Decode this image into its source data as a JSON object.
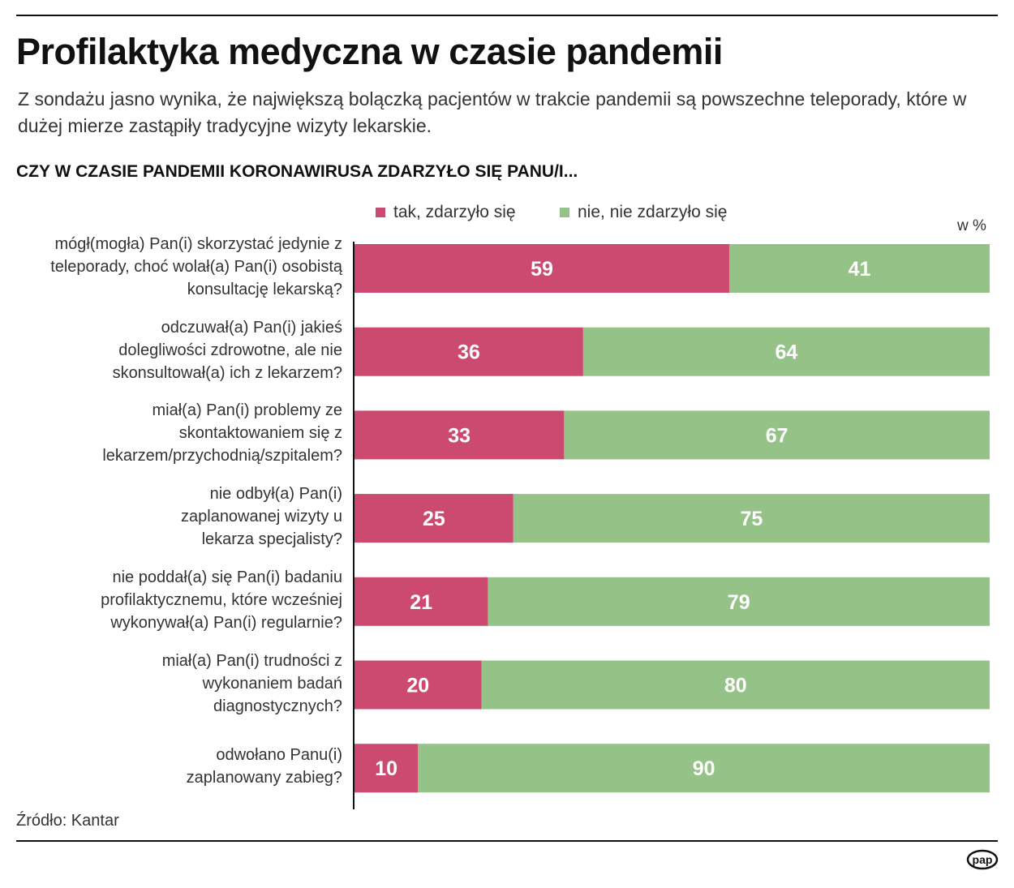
{
  "title": "Profilaktyka medyczna w czasie pandemii",
  "subtitle": "Z sondażu jasno wynika, że największą bolączką pacjentów w trakcie pandemii są powszechne teleporady, które w dużej mierze zastąpiły tradycyjne wizyty lekarskie.",
  "source": "Źródło: Kantar",
  "logo_text": "pap",
  "chart_data": {
    "type": "bar",
    "stacked": true,
    "orientation": "horizontal",
    "title": "CZY W CZASIE PANDEMII KORONAWIRUSA ZDARZYŁO SIĘ PANU/I...",
    "unit": "w %",
    "xlim": [
      0,
      100
    ],
    "legend_position": "top",
    "categories": [
      "mógł(mogła) Pan(i) skorzystać jedynie z teleporady, choć wolał(a) Pan(i) osobistą konsultację lekarską?",
      "odczuwał(a) Pan(i) jakieś dolegliwości zdrowotne, ale nie skonsultował(a) ich z lekarzem?",
      "miał(a) Pan(i) problemy ze skontaktowaniem się z lekarzem/przychodnią/szpitalem?",
      "nie odbył(a) Pan(i) zaplanowanej wizyty u lekarza specjalisty?",
      "nie poddał(a) się Pan(i) badaniu profilaktycznemu, które wcześniej wykonywał(a) Pan(i) regularnie?",
      "miał(a) Pan(i) trudności z wykonaniem badań diagnostycznych?",
      "odwołano Panu(i) zaplanowany zabieg?"
    ],
    "series": [
      {
        "name": "tak, zdarzyło się",
        "color": "#cc4a6f",
        "values": [
          59,
          36,
          33,
          25,
          21,
          20,
          10
        ]
      },
      {
        "name": "nie, nie zdarzyło się",
        "color": "#95c287",
        "values": [
          41,
          64,
          67,
          75,
          79,
          80,
          90
        ]
      }
    ]
  }
}
